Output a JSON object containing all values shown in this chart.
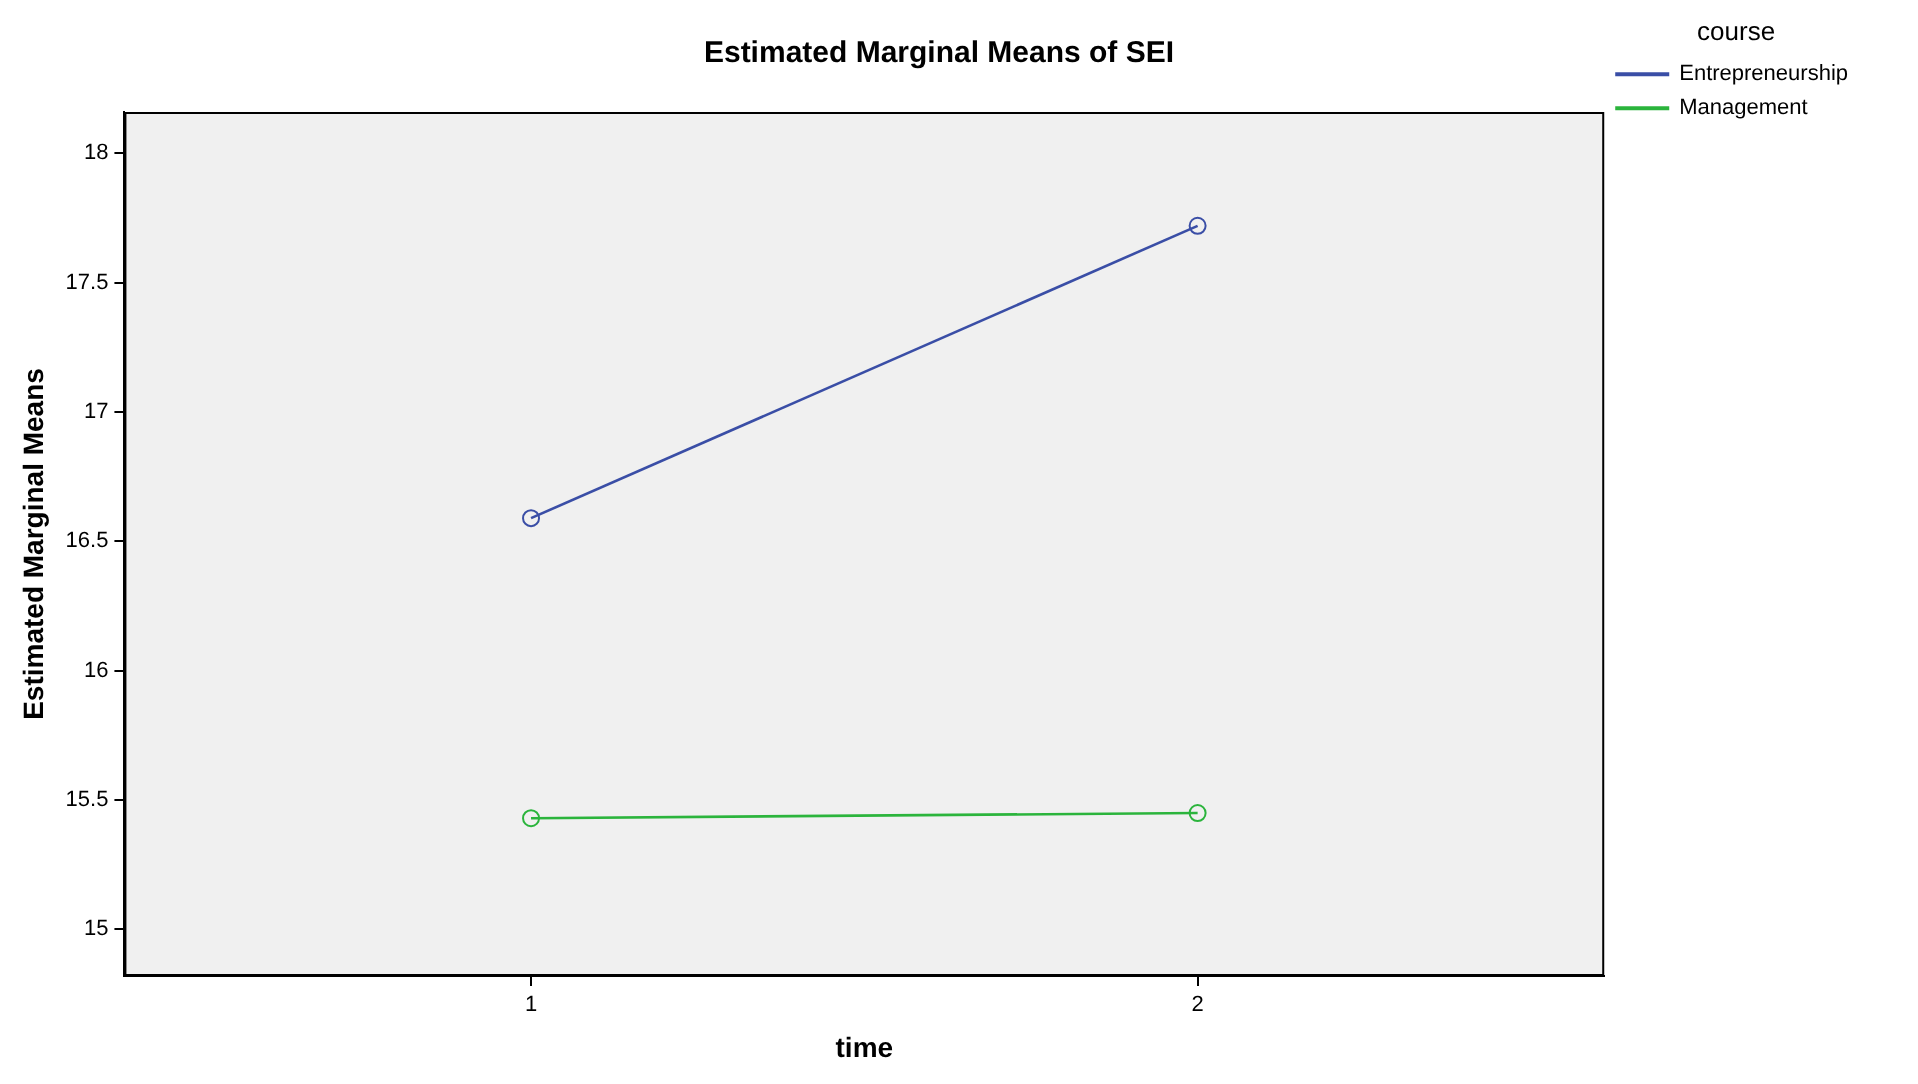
{
  "chart_data": {
    "type": "line",
    "title": "Estimated Marginal Means of SEI",
    "xlabel": "time",
    "ylabel": "Estimated Marginal Means",
    "legend_title": "course",
    "x": [
      1,
      2
    ],
    "xlim": [
      0.39,
      2.61
    ],
    "xticks": [
      1,
      2
    ],
    "ylim": [
      14.82,
      18.16
    ],
    "yticks": [
      15,
      15.5,
      16,
      16.5,
      17,
      17.5,
      18
    ],
    "series": [
      {
        "name": "Entrepreneurship",
        "color": "#3a4ea6",
        "values": [
          16.59,
          17.72
        ]
      },
      {
        "name": "Management",
        "color": "#2bb43c",
        "values": [
          15.43,
          15.45
        ]
      }
    ],
    "grid": false,
    "legend": "top right",
    "marker": "circle",
    "line_style": "solid"
  }
}
